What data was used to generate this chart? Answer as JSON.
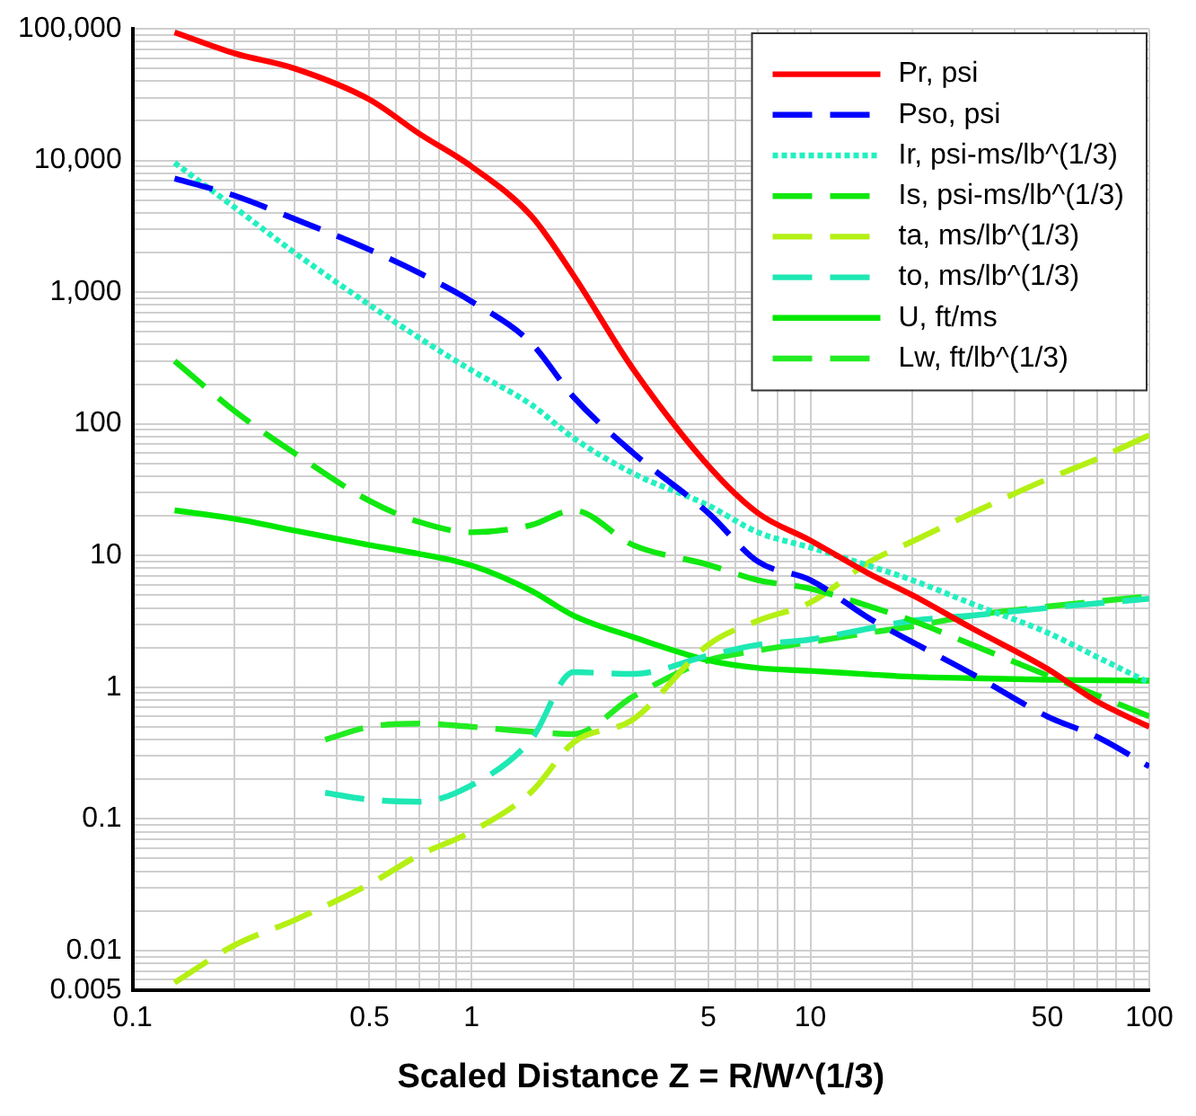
{
  "chart_data": {
    "type": "line",
    "xlabel": "Scaled Distance Z = R/W^(1/3)",
    "log": "xy",
    "grid": true,
    "legend": "top right",
    "marker": "none",
    "x": [
      0.133,
      0.2,
      0.3,
      0.5,
      0.7,
      1,
      1.5,
      2,
      3,
      5,
      7,
      10,
      15,
      20,
      30,
      50,
      70,
      100
    ],
    "series": [
      {
        "name": "Pr, psi",
        "color": "#ff0000",
        "line_style": "solid",
        "values": [
          94000,
          65000,
          50000,
          29000,
          16000,
          9000,
          3800,
          1340,
          260,
          48,
          21,
          13,
          7.2,
          5,
          2.8,
          1.38,
          0.78,
          0.5
        ]
      },
      {
        "name": "Pso, psi",
        "color": "#0000ff",
        "line_style": "dashed",
        "values": [
          7300,
          5400,
          3600,
          2100,
          1400,
          850,
          410,
          160,
          60,
          21,
          9,
          6.5,
          3.3,
          2.2,
          1.26,
          0.6,
          0.42,
          0.25
        ]
      },
      {
        "name": "Ir, psi-ms/lb^(1/3)",
        "color": "#22f0c0",
        "line_style": "dotted",
        "values": [
          9600,
          4400,
          2000,
          800,
          450,
          255,
          140,
          78,
          42,
          24,
          15,
          11.5,
          8.3,
          6.5,
          4.3,
          2.6,
          1.7,
          1.08
        ]
      },
      {
        "name": "Is, psi-ms/lb^(1/3)",
        "color": "#11e811",
        "line_style": "dashed",
        "values": [
          300,
          125,
          60,
          26,
          18,
          15,
          17,
          22,
          12,
          8.5,
          6.5,
          5.6,
          4.1,
          3.2,
          2.1,
          1.23,
          0.87,
          0.6
        ]
      },
      {
        "name": "ta, ms/lb^(1/3)",
        "color": "#b4f014",
        "line_style": "dashed",
        "values": [
          0.0057,
          0.011,
          0.017,
          0.032,
          0.053,
          0.08,
          0.16,
          0.38,
          0.57,
          2.1,
          3.2,
          4.4,
          9,
          12.8,
          21,
          38,
          54,
          82
        ]
      },
      {
        "name": "to, ms/lb^(1/3)",
        "color": "#1ee8b4",
        "line_style": "dashed",
        "x": [
          0.37,
          0.5,
          0.7,
          1,
          1.5,
          2,
          3,
          5,
          7,
          10,
          15,
          20,
          30,
          50,
          100
        ],
        "values": [
          0.158,
          0.14,
          0.135,
          0.18,
          0.4,
          1.3,
          1.26,
          1.74,
          2.1,
          2.3,
          2.8,
          3.2,
          3.5,
          4,
          4.7
        ]
      },
      {
        "name": "U, ft/ms",
        "color": "#00e800",
        "line_style": "solid",
        "values": [
          22,
          19,
          15.5,
          12,
          10.3,
          8.4,
          5.4,
          3.5,
          2.4,
          1.6,
          1.4,
          1.33,
          1.25,
          1.2,
          1.17,
          1.14,
          1.13,
          1.12
        ]
      },
      {
        "name": "Lw, ft/lb^(1/3)",
        "color": "#22ec22",
        "line_style": "dashed",
        "x": [
          0.37,
          0.5,
          0.7,
          1,
          1.5,
          2,
          3,
          5,
          7,
          10,
          15,
          20,
          30,
          50,
          100
        ],
        "values": [
          0.4,
          0.5,
          0.53,
          0.5,
          0.46,
          0.44,
          0.85,
          1.6,
          1.9,
          2.2,
          2.6,
          2.9,
          3.5,
          4.1,
          4.9
        ]
      }
    ],
    "xlim": [
      0.1,
      100
    ],
    "xticks": [
      0.1,
      {
        "value": 0.2,
        "label": null
      },
      {
        "value": 0.3,
        "label": null
      },
      {
        "value": 0.4,
        "label": null
      },
      0.5,
      {
        "value": 0.6,
        "label": null
      },
      {
        "value": 0.7,
        "label": null
      },
      {
        "value": 0.8,
        "label": null
      },
      {
        "value": 0.9,
        "label": null
      },
      1,
      {
        "value": 2,
        "label": null
      },
      {
        "value": 3,
        "label": null
      },
      {
        "value": 4,
        "label": null
      },
      5,
      {
        "value": 6,
        "label": null
      },
      {
        "value": 7,
        "label": null
      },
      {
        "value": 8,
        "label": null
      },
      {
        "value": 9,
        "label": null
      },
      10,
      {
        "value": 20,
        "label": null
      },
      {
        "value": 30,
        "label": null
      },
      {
        "value": 40,
        "label": null
      },
      50,
      {
        "value": 60,
        "label": null
      },
      {
        "value": 70,
        "label": null
      },
      {
        "value": 80,
        "label": null
      },
      {
        "value": 90,
        "label": null
      },
      100
    ],
    "ylim": [
      0.005,
      100000
    ],
    "yticks": [
      0.005,
      {
        "value": 0.006,
        "label": null
      },
      {
        "value": 0.007,
        "label": null
      },
      {
        "value": 0.008,
        "label": null
      },
      {
        "value": 0.009,
        "label": null
      },
      0.01,
      {
        "value": 0.02,
        "label": null
      },
      {
        "value": 0.03,
        "label": null
      },
      {
        "value": 0.04,
        "label": null
      },
      {
        "value": 0.05,
        "label": null
      },
      {
        "value": 0.06,
        "label": null
      },
      {
        "value": 0.07,
        "label": null
      },
      {
        "value": 0.08,
        "label": null
      },
      {
        "value": 0.09,
        "label": null
      },
      0.1,
      {
        "value": 0.2,
        "label": null
      },
      {
        "value": 0.3,
        "label": null
      },
      {
        "value": 0.4,
        "label": null
      },
      {
        "value": 0.5,
        "label": null
      },
      {
        "value": 0.6,
        "label": null
      },
      {
        "value": 0.7,
        "label": null
      },
      {
        "value": 0.8,
        "label": null
      },
      {
        "value": 0.9,
        "label": null
      },
      1,
      {
        "value": 2,
        "label": null
      },
      {
        "value": 3,
        "label": null
      },
      {
        "value": 4,
        "label": null
      },
      {
        "value": 5,
        "label": null
      },
      {
        "value": 6,
        "label": null
      },
      {
        "value": 7,
        "label": null
      },
      {
        "value": 8,
        "label": null
      },
      {
        "value": 9,
        "label": null
      },
      10,
      {
        "value": 20,
        "label": null
      },
      {
        "value": 30,
        "label": null
      },
      {
        "value": 40,
        "label": null
      },
      {
        "value": 50,
        "label": null
      },
      {
        "value": 60,
        "label": null
      },
      {
        "value": 70,
        "label": null
      },
      {
        "value": 80,
        "label": null
      },
      {
        "value": 90,
        "label": null
      },
      100,
      {
        "value": 200,
        "label": null
      },
      {
        "value": 300,
        "label": null
      },
      {
        "value": 400,
        "label": null
      },
      {
        "value": 500,
        "label": null
      },
      {
        "value": 600,
        "label": null
      },
      {
        "value": 700,
        "label": null
      },
      {
        "value": 800,
        "label": null
      },
      {
        "value": 900,
        "label": null
      },
      {
        "value": 1000,
        "label": "1,000"
      },
      {
        "value": 2000,
        "label": null
      },
      {
        "value": 3000,
        "label": null
      },
      {
        "value": 4000,
        "label": null
      },
      {
        "value": 5000,
        "label": null
      },
      {
        "value": 6000,
        "label": null
      },
      {
        "value": 7000,
        "label": null
      },
      {
        "value": 8000,
        "label": null
      },
      {
        "value": 9000,
        "label": null
      },
      {
        "value": 10000,
        "label": "10,000"
      },
      {
        "value": 20000,
        "label": null
      },
      {
        "value": 30000,
        "label": null
      },
      {
        "value": 40000,
        "label": null
      },
      {
        "value": 50000,
        "label": null
      },
      {
        "value": 60000,
        "label": null
      },
      {
        "value": 70000,
        "label": null
      },
      {
        "value": 80000,
        "label": null
      },
      {
        "value": 90000,
        "label": null
      },
      {
        "value": 100000,
        "label": "100,000"
      }
    ]
  }
}
